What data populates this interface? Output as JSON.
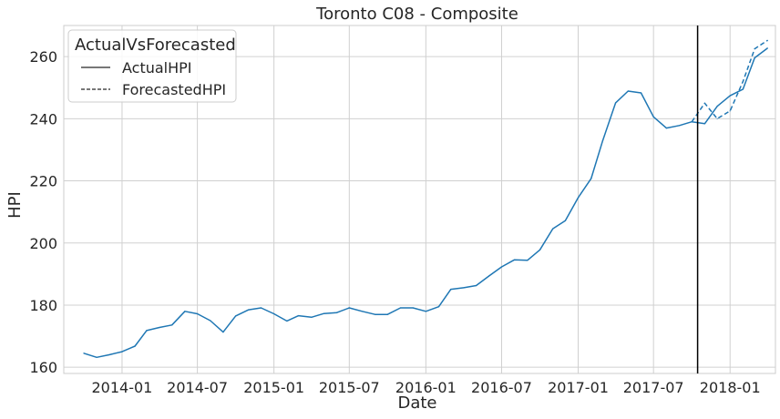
{
  "chart_data": {
    "type": "line",
    "title": "Toronto C08 - Composite",
    "xlabel": "Date",
    "ylabel": "HPI",
    "grid": true,
    "legend": {
      "title": "ActualVsForecasted",
      "placement": "top-left",
      "entries": [
        "ActualHPI",
        "ForecastedHPI"
      ]
    },
    "xlim": [
      "2013-08-14",
      "2018-04-20"
    ],
    "ylim": [
      158,
      270
    ],
    "x_ticks": [
      "2014-01",
      "2014-07",
      "2015-01",
      "2015-07",
      "2016-01",
      "2016-07",
      "2017-01",
      "2017-07",
      "2018-01"
    ],
    "y_ticks": [
      160,
      180,
      200,
      220,
      240,
      260
    ],
    "series": [
      {
        "name": "ActualHPI",
        "color": "#1f77b4",
        "style": "solid",
        "points": [
          [
            "2013-10-01",
            164.5
          ],
          [
            "2013-11-01",
            163.2
          ],
          [
            "2013-12-01",
            164.0
          ],
          [
            "2014-01-01",
            165.0
          ],
          [
            "2014-02-01",
            166.8
          ],
          [
            "2014-03-01",
            171.8
          ],
          [
            "2014-04-01",
            172.8
          ],
          [
            "2014-05-01",
            173.6
          ],
          [
            "2014-06-01",
            178.0
          ],
          [
            "2014-07-01",
            177.2
          ],
          [
            "2014-08-01",
            175.0
          ],
          [
            "2014-09-01",
            171.3
          ],
          [
            "2014-10-01",
            176.5
          ],
          [
            "2014-11-01",
            178.5
          ],
          [
            "2014-12-01",
            179.1
          ],
          [
            "2015-01-01",
            177.2
          ],
          [
            "2015-02-01",
            174.9
          ],
          [
            "2015-03-01",
            176.6
          ],
          [
            "2015-04-01",
            176.1
          ],
          [
            "2015-05-01",
            177.3
          ],
          [
            "2015-06-01",
            177.6
          ],
          [
            "2015-07-01",
            179.1
          ],
          [
            "2015-08-01",
            178.0
          ],
          [
            "2015-09-01",
            177.0
          ],
          [
            "2015-10-01",
            177.0
          ],
          [
            "2015-11-01",
            179.1
          ],
          [
            "2015-12-01",
            179.1
          ],
          [
            "2016-01-01",
            178.0
          ],
          [
            "2016-02-01",
            179.5
          ],
          [
            "2016-03-01",
            185.1
          ],
          [
            "2016-04-01",
            185.6
          ],
          [
            "2016-05-01",
            186.3
          ],
          [
            "2016-06-01",
            189.4
          ],
          [
            "2016-07-01",
            192.3
          ],
          [
            "2016-08-01",
            194.6
          ],
          [
            "2016-09-01",
            194.4
          ],
          [
            "2016-10-01",
            197.8
          ],
          [
            "2016-11-01",
            204.6
          ],
          [
            "2016-12-01",
            207.2
          ],
          [
            "2017-01-01",
            214.6
          ],
          [
            "2017-02-01",
            220.7
          ],
          [
            "2017-03-01",
            233.0
          ],
          [
            "2017-04-01",
            245.1
          ],
          [
            "2017-05-01",
            248.9
          ],
          [
            "2017-06-01",
            248.3
          ],
          [
            "2017-07-01",
            240.6
          ],
          [
            "2017-08-01",
            237.0
          ],
          [
            "2017-09-01",
            237.8
          ],
          [
            "2017-10-01",
            239.0
          ],
          [
            "2017-11-01",
            238.4
          ],
          [
            "2017-12-01",
            244.0
          ],
          [
            "2018-01-01",
            247.4
          ],
          [
            "2018-02-01",
            249.5
          ],
          [
            "2018-03-01",
            259.6
          ],
          [
            "2018-04-01",
            262.7
          ]
        ]
      },
      {
        "name": "ForecastedHPI",
        "color": "#1f77b4",
        "style": "dashed",
        "points": [
          [
            "2017-10-01",
            239.0
          ],
          [
            "2017-11-01",
            245.0
          ],
          [
            "2017-12-01",
            240.0
          ],
          [
            "2018-01-01",
            242.5
          ],
          [
            "2018-02-01",
            252.0
          ],
          [
            "2018-03-01",
            262.5
          ],
          [
            "2018-04-01",
            265.2
          ]
        ]
      }
    ],
    "annotations": [
      {
        "type": "vline",
        "x": "2017-10-15",
        "color": "#000000"
      }
    ]
  }
}
